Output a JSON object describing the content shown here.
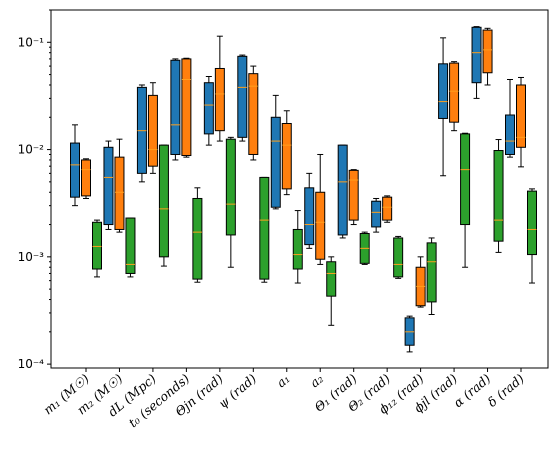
{
  "chart_data": {
    "type": "box",
    "yscale": "log",
    "ylim": [
      9.2e-05,
      0.2
    ],
    "yticks": [
      {
        "value": 0.0001,
        "label": "10⁻⁴"
      },
      {
        "value": 0.001,
        "label": "10⁻³"
      },
      {
        "value": 0.01,
        "label": "10⁻²"
      },
      {
        "value": 0.1,
        "label": "10⁻¹"
      }
    ],
    "categories": [
      "m₁ (M☉)",
      "m₂ (M☉)",
      "dL (Mpc)",
      "t₀ (seconds)",
      "Θjn (rad)",
      "ψ (rad)",
      "a₁",
      "a₂",
      "Θ₁ (rad)",
      "Θ₂ (rad)",
      "ϕ₁₂ (rad)",
      "ϕjl (rad)",
      "α (rad)",
      "δ (rad)"
    ],
    "series": [
      {
        "color": "#1f77b4",
        "boxes": [
          {
            "lo": 0.003,
            "q1": 0.0036,
            "med": 0.0072,
            "q3": 0.0115,
            "hi": 0.017
          },
          {
            "lo": 0.0018,
            "q1": 0.002,
            "med": 0.0055,
            "q3": 0.0105,
            "hi": 0.012
          },
          {
            "lo": 0.005,
            "q1": 0.006,
            "med": 0.015,
            "q3": 0.038,
            "hi": 0.04
          },
          {
            "lo": 0.008,
            "q1": 0.009,
            "med": 0.017,
            "q3": 0.068,
            "hi": 0.07
          },
          {
            "lo": 0.011,
            "q1": 0.014,
            "med": 0.026,
            "q3": 0.042,
            "hi": 0.048
          },
          {
            "lo": 0.012,
            "q1": 0.013,
            "med": 0.038,
            "q3": 0.074,
            "hi": 0.076
          },
          {
            "lo": 0.0028,
            "q1": 0.0029,
            "med": 0.012,
            "q3": 0.02,
            "hi": 0.032
          },
          {
            "lo": 0.0012,
            "q1": 0.0013,
            "med": 0.002,
            "q3": 0.0044,
            "hi": 0.006
          },
          {
            "lo": 0.0015,
            "q1": 0.0016,
            "med": 0.005,
            "q3": 0.011,
            "hi": 0.011
          },
          {
            "lo": 0.0017,
            "q1": 0.0019,
            "med": 0.0026,
            "q3": 0.0033,
            "hi": 0.0035
          },
          {
            "lo": 0.00013,
            "q1": 0.00015,
            "med": 0.0002,
            "q3": 0.00027,
            "hi": 0.00028
          },
          {
            "lo": 0.0057,
            "q1": 0.0195,
            "med": 0.028,
            "q3": 0.063,
            "hi": 0.11
          },
          {
            "lo": 0.03,
            "q1": 0.042,
            "med": 0.08,
            "q3": 0.138,
            "hi": 0.14
          },
          {
            "lo": 0.0085,
            "q1": 0.009,
            "med": 0.012,
            "q3": 0.021,
            "hi": 0.045
          }
        ]
      },
      {
        "color": "#ff7f0e",
        "boxes": [
          {
            "lo": 0.0035,
            "q1": 0.0037,
            "med": 0.0065,
            "q3": 0.008,
            "hi": 0.0082
          },
          {
            "lo": 0.0017,
            "q1": 0.0018,
            "med": 0.004,
            "q3": 0.0085,
            "hi": 0.0125
          },
          {
            "lo": 0.006,
            "q1": 0.007,
            "med": 0.01,
            "q3": 0.032,
            "hi": 0.042
          },
          {
            "lo": 0.0085,
            "q1": 0.0088,
            "med": 0.045,
            "q3": 0.07,
            "hi": 0.071
          },
          {
            "lo": 0.012,
            "q1": 0.015,
            "med": 0.033,
            "q3": 0.057,
            "hi": 0.114
          },
          {
            "lo": 0.008,
            "q1": 0.009,
            "med": 0.039,
            "q3": 0.051,
            "hi": 0.06
          },
          {
            "lo": 0.0038,
            "q1": 0.0043,
            "med": 0.011,
            "q3": 0.0175,
            "hi": 0.023
          },
          {
            "lo": 0.00085,
            "q1": 0.00095,
            "med": 0.0021,
            "q3": 0.004,
            "hi": 0.009
          },
          {
            "lo": 0.002,
            "q1": 0.0022,
            "med": 0.0052,
            "q3": 0.0064,
            "hi": 0.0065
          },
          {
            "lo": 0.0021,
            "q1": 0.0022,
            "med": 0.0029,
            "q3": 0.0036,
            "hi": 0.0037
          },
          {
            "lo": 0.00034,
            "q1": 0.00035,
            "med": 0.00053,
            "q3": 0.0008,
            "hi": 0.001
          },
          {
            "lo": 0.015,
            "q1": 0.018,
            "med": 0.035,
            "q3": 0.064,
            "hi": 0.066
          },
          {
            "lo": 0.04,
            "q1": 0.052,
            "med": 0.085,
            "q3": 0.13,
            "hi": 0.135
          },
          {
            "lo": 0.0069,
            "q1": 0.0105,
            "med": 0.013,
            "q3": 0.04,
            "hi": 0.047
          }
        ]
      },
      {
        "color": "#2ca02c",
        "boxes": [
          {
            "lo": 0.00065,
            "q1": 0.00077,
            "med": 0.00125,
            "q3": 0.0021,
            "hi": 0.0022
          },
          {
            "lo": 0.00065,
            "q1": 0.0007,
            "med": 0.00085,
            "q3": 0.0023,
            "hi": 0.0023
          },
          {
            "lo": 0.00082,
            "q1": 0.001,
            "med": 0.0028,
            "q3": 0.011,
            "hi": 0.011
          },
          {
            "lo": 0.00058,
            "q1": 0.00062,
            "med": 0.0017,
            "q3": 0.0035,
            "hi": 0.0044
          },
          {
            "lo": 0.0008,
            "q1": 0.0016,
            "med": 0.0031,
            "q3": 0.0125,
            "hi": 0.013
          },
          {
            "lo": 0.00058,
            "q1": 0.00062,
            "med": 0.0022,
            "q3": 0.0055,
            "hi": 0.0055
          },
          {
            "lo": 0.00057,
            "q1": 0.00077,
            "med": 0.00105,
            "q3": 0.0018,
            "hi": 0.0027
          },
          {
            "lo": 0.00023,
            "q1": 0.00043,
            "med": 0.0007,
            "q3": 0.0009,
            "hi": 0.001
          },
          {
            "lo": 0.00085,
            "q1": 0.00087,
            "med": 0.0012,
            "q3": 0.00165,
            "hi": 0.0017
          },
          {
            "lo": 0.00063,
            "q1": 0.00065,
            "med": 0.00085,
            "q3": 0.0015,
            "hi": 0.00155
          },
          {
            "lo": 0.00029,
            "q1": 0.00038,
            "med": 0.0009,
            "q3": 0.00135,
            "hi": 0.0015
          },
          {
            "lo": 0.0008,
            "q1": 0.002,
            "med": 0.0065,
            "q3": 0.014,
            "hi": 0.0142
          },
          {
            "lo": 0.0011,
            "q1": 0.0014,
            "med": 0.0022,
            "q3": 0.0098,
            "hi": 0.0124
          },
          {
            "lo": 0.00057,
            "q1": 0.00105,
            "med": 0.0018,
            "q3": 0.0041,
            "hi": 0.0043
          }
        ]
      }
    ],
    "median_color": "#ff9f1c",
    "grid": false,
    "xlabel": "",
    "ylabel": "",
    "title": ""
  }
}
